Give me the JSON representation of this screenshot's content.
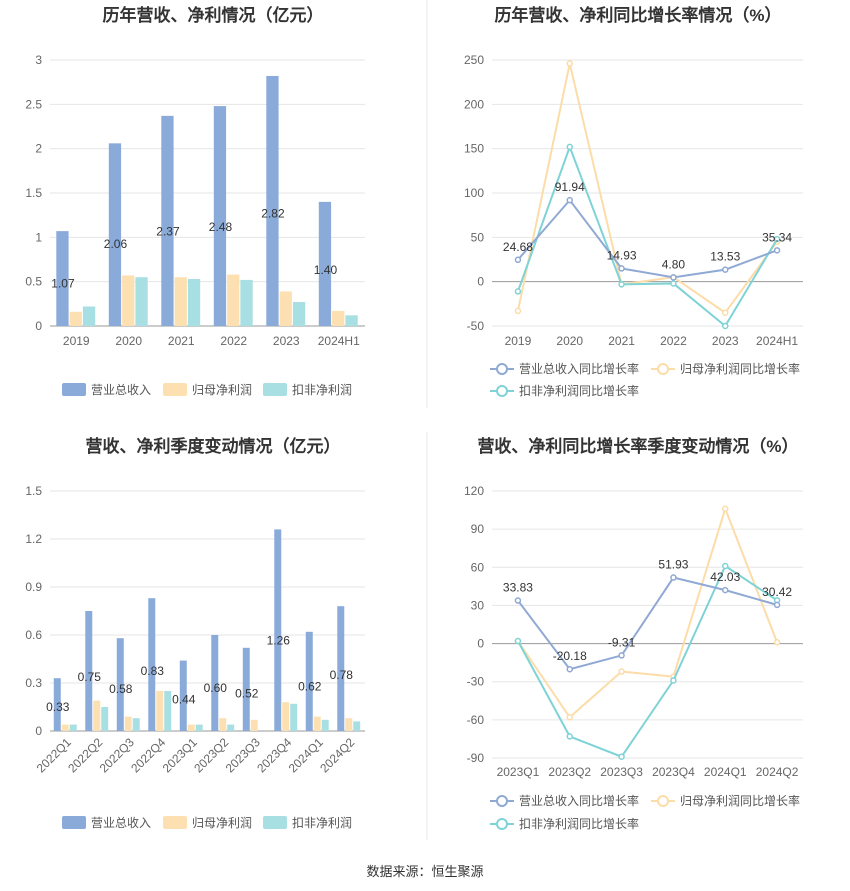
{
  "source": "数据来源：恒生聚源",
  "colors": {
    "revenue": "#8aaad9",
    "netprofit": "#fde0b2",
    "deducted": "#a8dfe3",
    "revenue_line": "#8fa9d4",
    "netprofit_line": "#fcdca8",
    "deducted_line": "#7fd3d6",
    "grid": "#e6e6e6",
    "divider": "#e8e8e8"
  },
  "chart_data": [
    {
      "type": "bar",
      "title": "历年营收、净利情况（亿元）",
      "categories": [
        "2019",
        "2020",
        "2021",
        "2022",
        "2023",
        "2024H1"
      ],
      "ylim": [
        0,
        3
      ],
      "yticks": [
        "0",
        "0.5",
        "1",
        "1.5",
        "2",
        "2.5",
        "3"
      ],
      "legend_position": "bottom",
      "series": [
        {
          "name": "营业总收入",
          "values": [
            1.07,
            2.06,
            2.37,
            2.48,
            2.82,
            1.4
          ],
          "labels": [
            "1.07",
            "2.06",
            "2.37",
            "2.48",
            "2.82",
            "1.40"
          ]
        },
        {
          "name": "归母净利润",
          "values": [
            0.16,
            0.57,
            0.55,
            0.58,
            0.39,
            0.17
          ]
        },
        {
          "name": "扣非净利润",
          "values": [
            0.22,
            0.55,
            0.53,
            0.52,
            0.27,
            0.12
          ]
        }
      ]
    },
    {
      "type": "line",
      "title": "历年营收、净利同比增长率情况（%）",
      "categories": [
        "2019",
        "2020",
        "2021",
        "2022",
        "2023",
        "2024H1"
      ],
      "ylim": [
        -50,
        250
      ],
      "yticks": [
        "-50",
        "0",
        "50",
        "100",
        "150",
        "200",
        "250"
      ],
      "legend_position": "bottom",
      "series": [
        {
          "name": "营业总收入同比增长率",
          "values": [
            24.68,
            91.94,
            14.93,
            4.8,
            13.53,
            35.34
          ],
          "labels": [
            "24.68",
            "91.94",
            "14.93",
            "4.80",
            "13.53",
            "35.34"
          ]
        },
        {
          "name": "归母净利润同比增长率",
          "values": [
            -33,
            246,
            -3,
            5,
            -35,
            45
          ]
        },
        {
          "name": "扣非净利润同比增长率",
          "values": [
            -11,
            152,
            -3,
            -2,
            -50,
            48
          ]
        }
      ]
    },
    {
      "type": "bar",
      "title": "营收、净利季度变动情况（亿元）",
      "categories": [
        "2022Q1",
        "2022Q2",
        "2022Q3",
        "2022Q4",
        "2023Q1",
        "2023Q2",
        "2023Q3",
        "2023Q4",
        "2024Q1",
        "2024Q2"
      ],
      "ylim": [
        0,
        1.5
      ],
      "yticks": [
        "0",
        "0.3",
        "0.6",
        "0.9",
        "1.2",
        "1.5"
      ],
      "legend_position": "bottom",
      "series": [
        {
          "name": "营业总收入",
          "values": [
            0.33,
            0.75,
            0.58,
            0.83,
            0.44,
            0.6,
            0.52,
            1.26,
            0.62,
            0.78
          ],
          "labels": [
            "0.33",
            "0.75",
            "0.58",
            "0.83",
            "0.44",
            "0.60",
            "0.52",
            "1.26",
            "0.62",
            "0.78"
          ]
        },
        {
          "name": "归母净利润",
          "values": [
            0.04,
            0.19,
            0.09,
            0.25,
            0.04,
            0.08,
            0.07,
            0.18,
            0.09,
            0.08
          ]
        },
        {
          "name": "扣非净利润",
          "values": [
            0.04,
            0.15,
            0.08,
            0.25,
            0.04,
            0.04,
            0.0,
            0.17,
            0.07,
            0.06
          ]
        }
      ]
    },
    {
      "type": "line",
      "title": "营收、净利同比增长率季度变动情况（%）",
      "categories": [
        "2023Q1",
        "2023Q2",
        "2023Q3",
        "2023Q4",
        "2024Q1",
        "2024Q2"
      ],
      "ylim": [
        -90,
        120
      ],
      "yticks": [
        "-90",
        "-60",
        "-30",
        "0",
        "30",
        "60",
        "90",
        "120"
      ],
      "legend_position": "bottom",
      "series": [
        {
          "name": "营业总收入同比增长率",
          "values": [
            33.83,
            -20.18,
            -9.31,
            51.93,
            42.03,
            30.42
          ],
          "labels": [
            "33.83",
            "-20.18",
            "-9.31",
            "51.93",
            "42.03",
            "30.42"
          ]
        },
        {
          "name": "归母净利润同比增长率",
          "values": [
            2,
            -58,
            -22,
            -26,
            106,
            1
          ]
        },
        {
          "name": "扣非净利润同比增长率",
          "values": [
            2,
            -73,
            -89,
            -29,
            61,
            34
          ]
        }
      ]
    }
  ]
}
